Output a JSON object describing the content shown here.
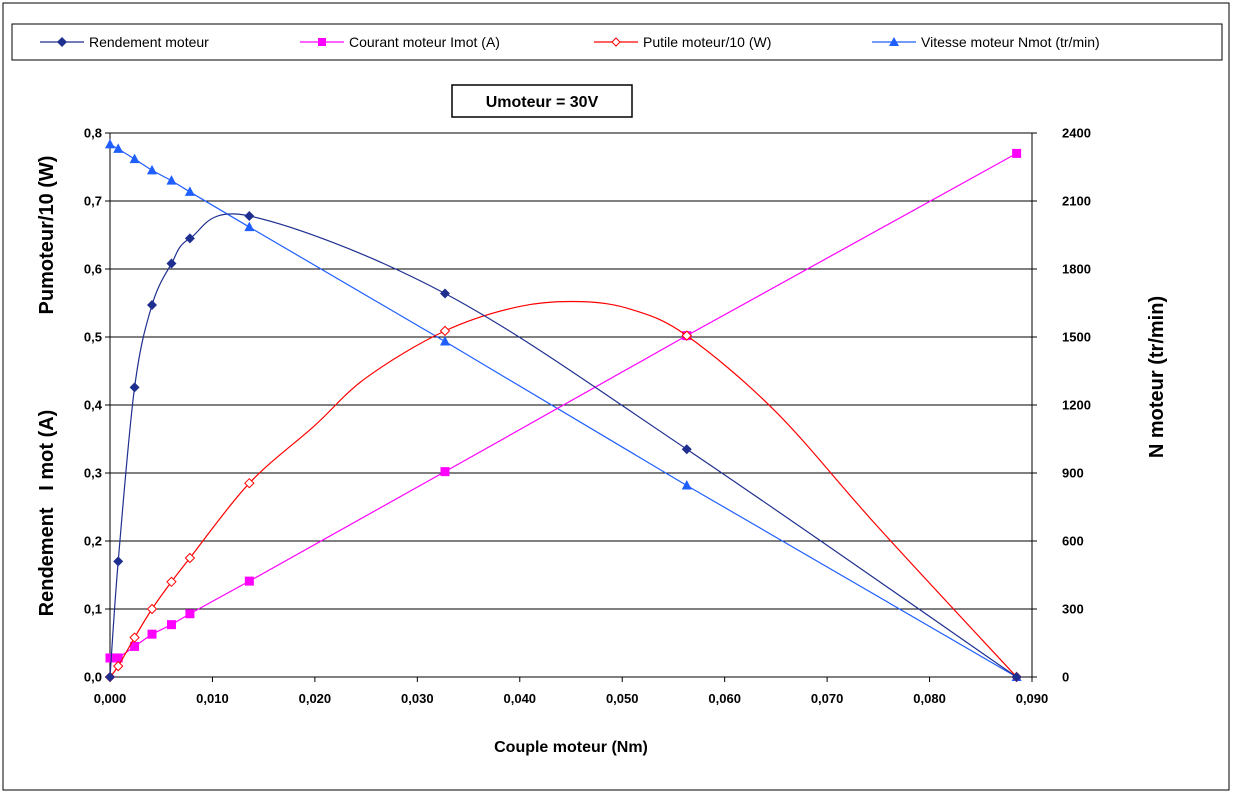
{
  "chart_data": {
    "type": "line",
    "annotation": "Umoteur = 30V",
    "xlabel": "Couple moteur (Nm)",
    "ylabel_left_top": "Pumoteur/10 (W)",
    "ylabel_left_bottom": "Rendement   I mot (A)",
    "ylabel_right": "N moteur (tr/min)",
    "xlim": [
      0,
      0.09
    ],
    "ylim_left": [
      0,
      0.8
    ],
    "ylim_right": [
      0,
      2400
    ],
    "grid": "horizontal",
    "legend_position": "top",
    "x_ticks": [
      "0,000",
      "0,010",
      "0,020",
      "0,030",
      "0,040",
      "0,050",
      "0,060",
      "0,070",
      "0,080",
      "0,090"
    ],
    "y_left_ticks": [
      "0,0",
      "0,1",
      "0,2",
      "0,3",
      "0,4",
      "0,5",
      "0,6",
      "0,7",
      "0,8"
    ],
    "y_right_ticks": [
      "0",
      "300",
      "600",
      "900",
      "1200",
      "1500",
      "1800",
      "2100",
      "2400"
    ],
    "series": [
      {
        "name": "Rendement moteur",
        "axis": "left",
        "color": "#1f2f8f",
        "marker": "diamond",
        "x": [
          0,
          0.0008,
          0.0024,
          0.0041,
          0.006,
          0.0078,
          0.0136,
          0.0327,
          0.0563,
          0.0885
        ],
        "y": [
          0,
          0.17,
          0.426,
          0.547,
          0.608,
          0.645,
          0.678,
          0.564,
          0.335,
          0
        ]
      },
      {
        "name": "Courant moteur Imot (A)",
        "axis": "left",
        "color": "#ff00ff",
        "marker": "square",
        "x": [
          0,
          0.0008,
          0.0024,
          0.0041,
          0.006,
          0.0078,
          0.0136,
          0.0327,
          0.0563,
          0.0885
        ],
        "y": [
          0.028,
          0.028,
          0.045,
          0.063,
          0.077,
          0.093,
          0.141,
          0.302,
          0.502,
          0.77
        ]
      },
      {
        "name": "Putile moteur/10 (W)",
        "axis": "left",
        "color": "#ff0000",
        "marker": "diamond-open",
        "x": [
          0,
          0.0008,
          0.0024,
          0.0041,
          0.006,
          0.0078,
          0.0136,
          0.0327,
          0.0563,
          0.0885
        ],
        "y": [
          0,
          0.016,
          0.058,
          0.1,
          0.14,
          0.175,
          0.285,
          0.509,
          0.502,
          0
        ],
        "curve_x": [
          0,
          0.0008,
          0.0024,
          0.0041,
          0.006,
          0.0078,
          0.0136,
          0.02,
          0.025,
          0.0327,
          0.04,
          0.046,
          0.051,
          0.0563,
          0.065,
          0.075,
          0.0885
        ],
        "curve_y": [
          0,
          0.016,
          0.058,
          0.1,
          0.14,
          0.175,
          0.285,
          0.37,
          0.44,
          0.509,
          0.545,
          0.552,
          0.54,
          0.502,
          0.39,
          0.22,
          0
        ]
      },
      {
        "name": "Vitesse moteur Nmot (tr/min)",
        "axis": "right",
        "color": "#1f5fff",
        "marker": "triangle",
        "x": [
          0,
          0.0008,
          0.0024,
          0.0041,
          0.006,
          0.0078,
          0.0136,
          0.0327,
          0.0563,
          0.0885
        ],
        "y": [
          2350,
          2330,
          2285,
          2235,
          2190,
          2140,
          1985,
          1480,
          845,
          0
        ]
      }
    ]
  }
}
